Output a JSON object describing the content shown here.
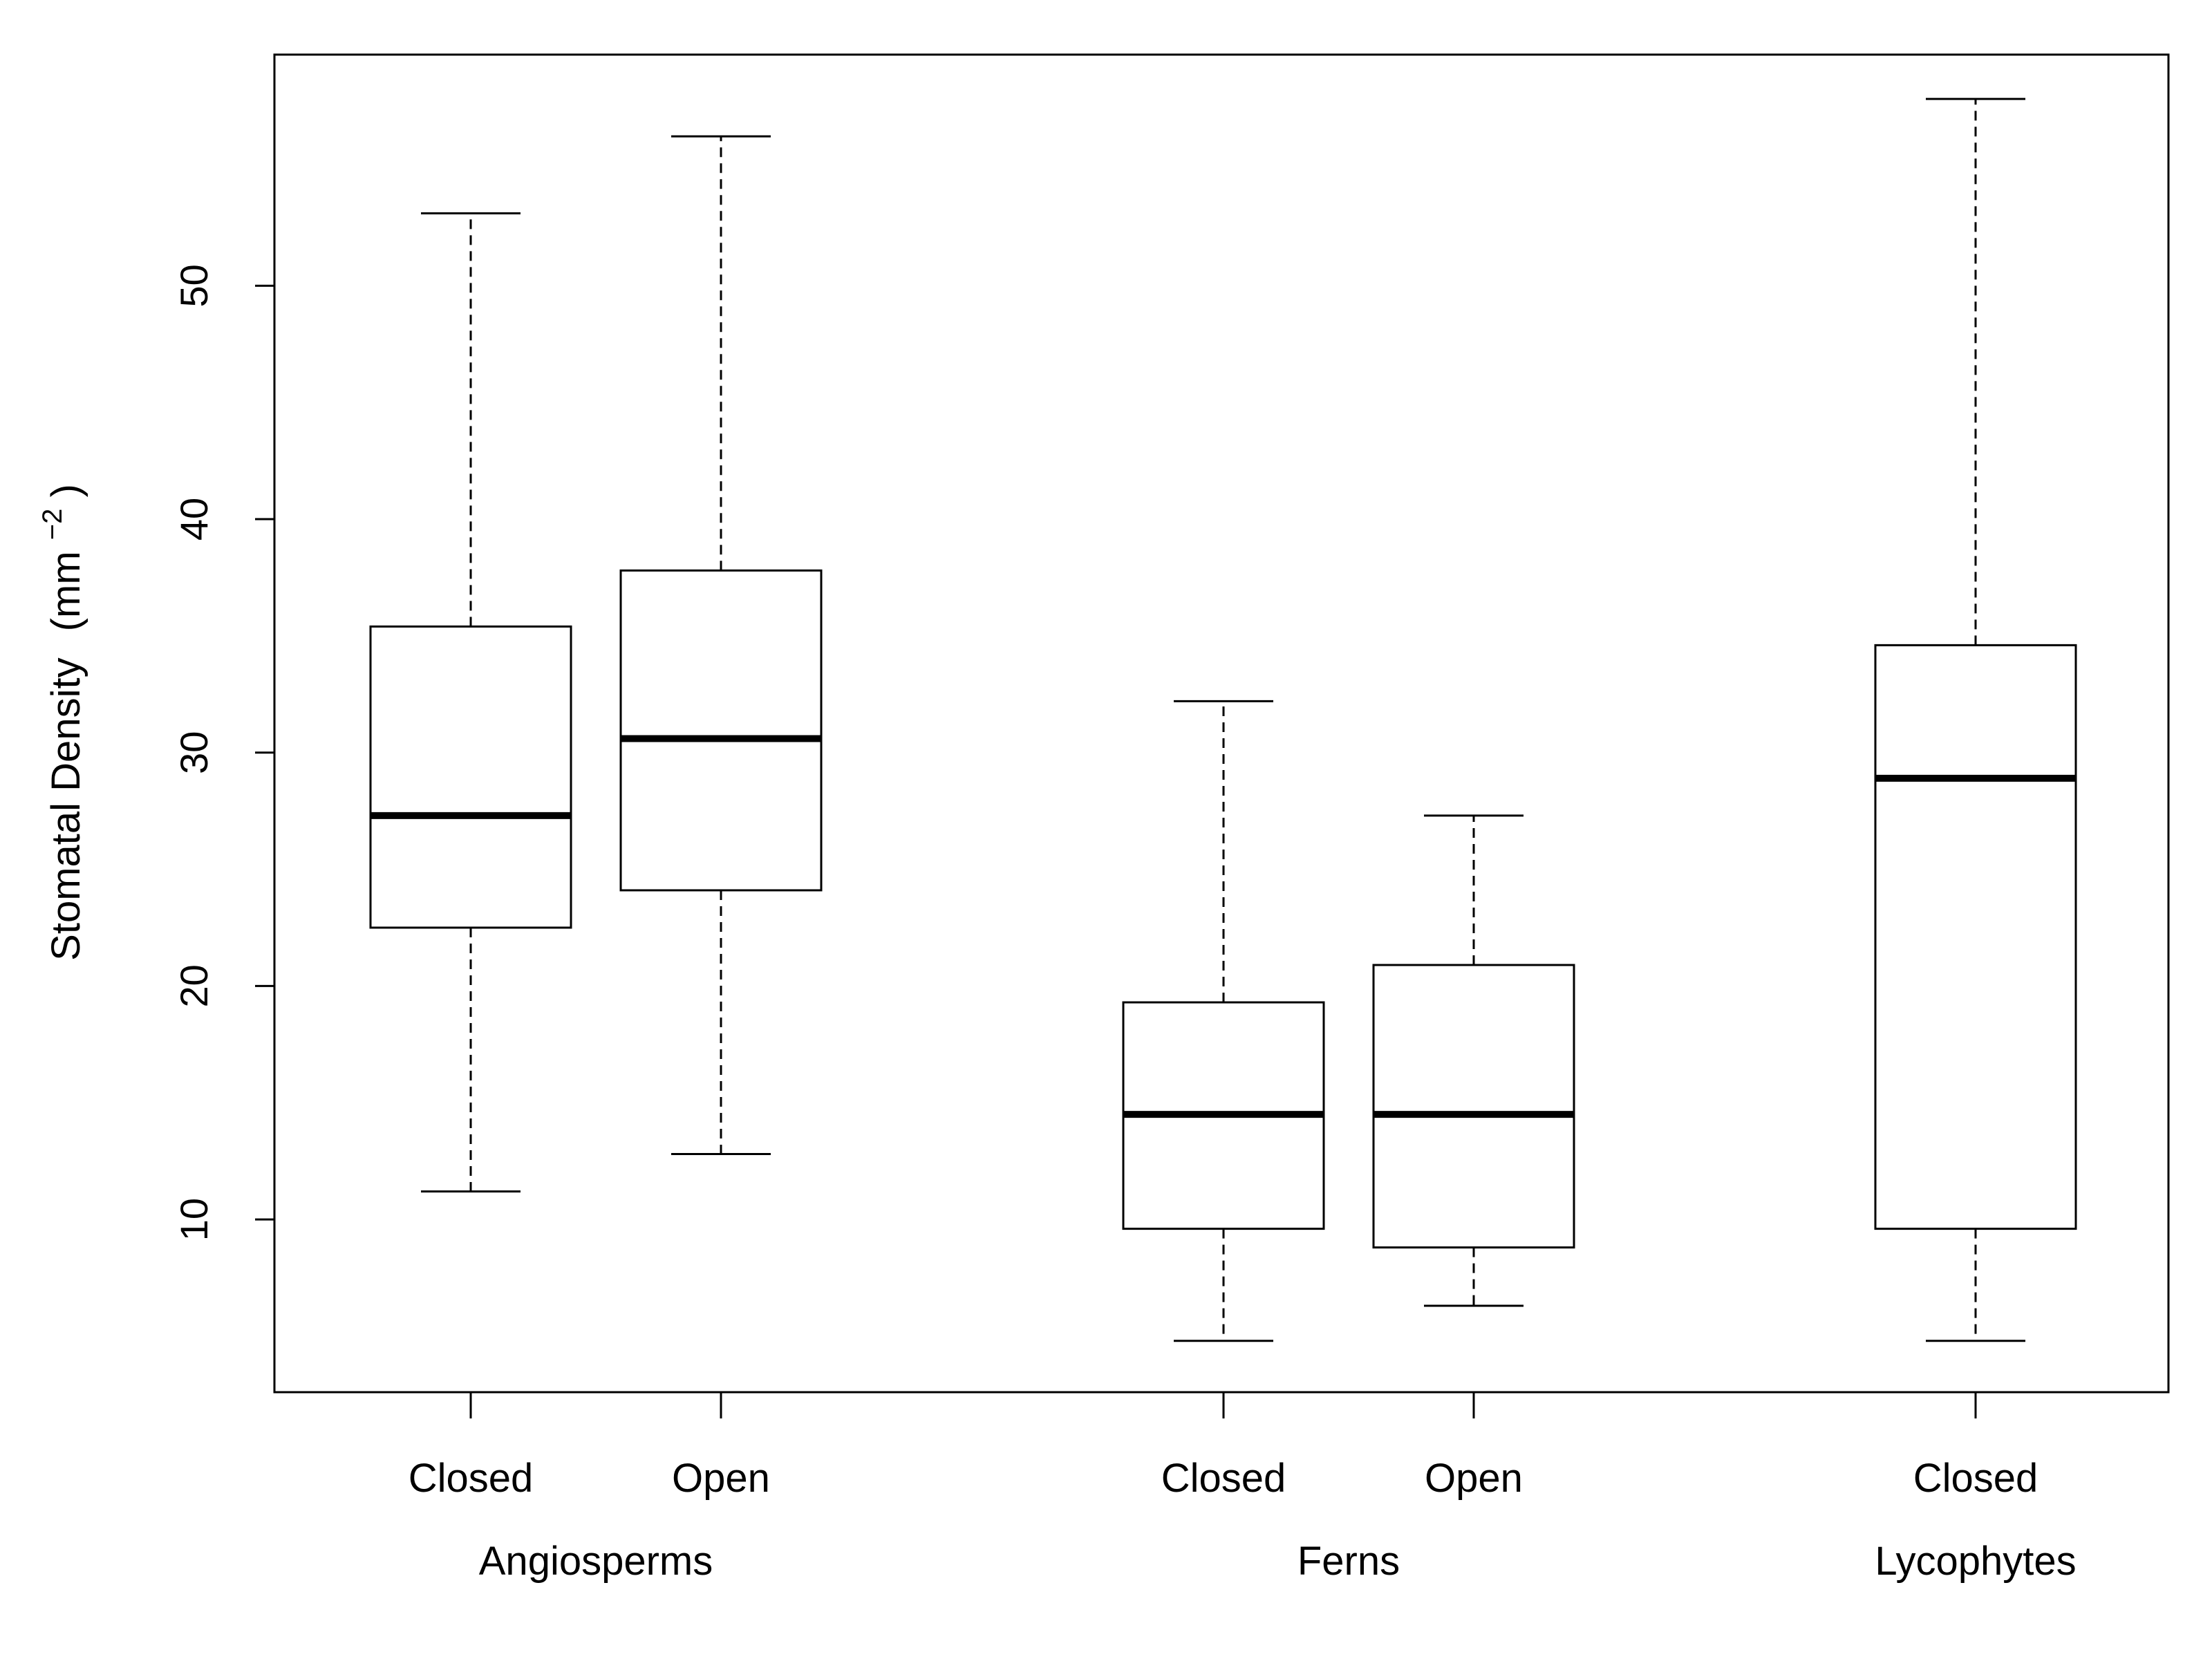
{
  "chart_data": {
    "type": "boxplot",
    "ylabel": {
      "main": "Stomatal Density",
      "unit_base": "(mm",
      "unit_exp": "−2",
      "unit_close": ")"
    },
    "ylim": [
      2.6,
      59.9
    ],
    "yticks": [
      10,
      20,
      30,
      40,
      50
    ],
    "categories": [
      "Closed",
      "Open",
      "Closed",
      "Open",
      "Closed"
    ],
    "groups": [
      {
        "name": "Angiosperms",
        "members": [
          0,
          1
        ]
      },
      {
        "name": "Ferns",
        "members": [
          2,
          3
        ]
      },
      {
        "name": "Lycophytes",
        "members": [
          4
        ]
      }
    ],
    "boxes": [
      {
        "group": "Angiosperms",
        "label": "Closed",
        "min": 11.2,
        "q1": 22.5,
        "median": 27.3,
        "q3": 35.4,
        "max": 53.1
      },
      {
        "group": "Angiosperms",
        "label": "Open",
        "min": 12.8,
        "q1": 24.1,
        "median": 30.6,
        "q3": 37.8,
        "max": 56.4
      },
      {
        "group": "Ferns",
        "label": "Closed",
        "min": 4.8,
        "q1": 9.6,
        "median": 14.5,
        "q3": 19.3,
        "max": 32.2
      },
      {
        "group": "Ferns",
        "label": "Open",
        "min": 6.3,
        "q1": 8.8,
        "median": 14.5,
        "q3": 20.9,
        "max": 27.3
      },
      {
        "group": "Lycophytes",
        "label": "Closed",
        "min": 4.8,
        "q1": 9.6,
        "median": 28.9,
        "q3": 34.6,
        "max": 58.0
      }
    ]
  }
}
